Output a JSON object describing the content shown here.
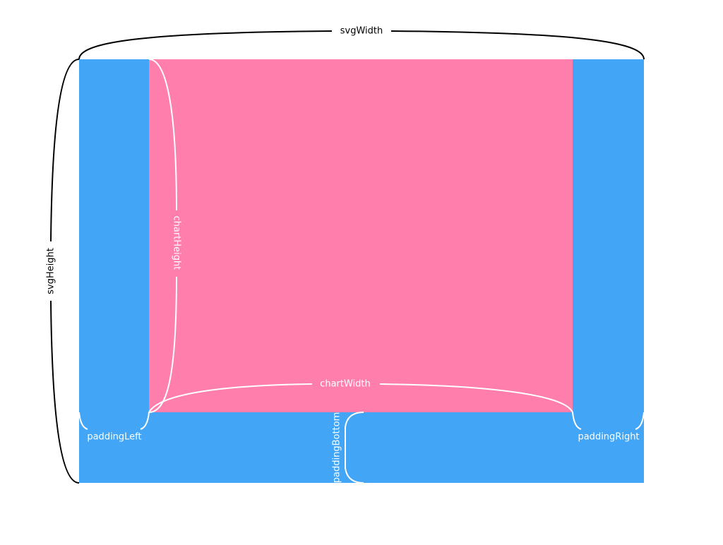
{
  "labels": {
    "svgWidth": "svgWidth",
    "svgHeight": "svgHeight",
    "chartWidth": "chartWidth",
    "chartHeight": "chartHeight",
    "paddingLeft": "paddingLeft",
    "paddingRight": "paddingRight",
    "paddingBottom": "paddingBottom"
  }
}
